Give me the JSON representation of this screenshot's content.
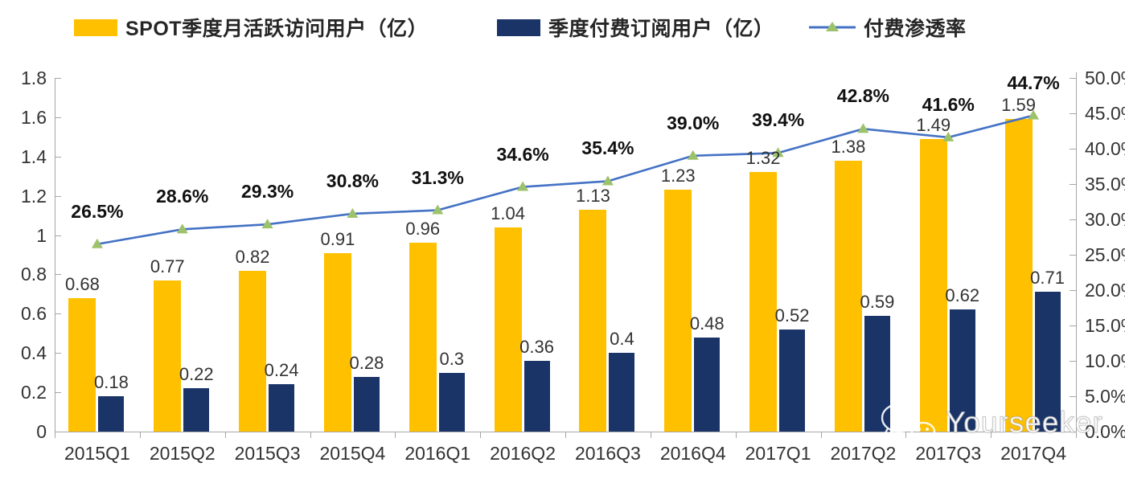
{
  "legend": [
    {
      "label": "SPOT季度月活跃访问用户（亿）",
      "type": "bar",
      "color": "#FFC000"
    },
    {
      "label": "季度付费订阅用户（亿）",
      "type": "bar",
      "color": "#1A3468"
    },
    {
      "label": "付费渗透率",
      "type": "line",
      "color": "#4472C4",
      "marker_color": "#9DC26B"
    }
  ],
  "chart_data": {
    "type": "bar+line combo",
    "categories": [
      "2015Q1",
      "2015Q2",
      "2015Q3",
      "2015Q4",
      "2016Q1",
      "2016Q2",
      "2016Q3",
      "2016Q4",
      "2017Q1",
      "2017Q2",
      "2017Q3",
      "2017Q4"
    ],
    "series": [
      {
        "name": "SPOT季度月活跃访问用户（亿）",
        "type": "bar",
        "axis": "left",
        "color": "#FFC000",
        "values": [
          0.68,
          0.77,
          0.82,
          0.91,
          0.96,
          1.04,
          1.13,
          1.23,
          1.32,
          1.38,
          1.49,
          1.59
        ],
        "labels": [
          "0.68",
          "0.77",
          "0.82",
          "0.91",
          "0.96",
          "1.04",
          "1.13",
          "1.23",
          "1.32",
          "1.38",
          "1.49",
          "1.59"
        ]
      },
      {
        "name": "季度付费订阅用户（亿）",
        "type": "bar",
        "axis": "left",
        "color": "#1A3468",
        "values": [
          0.18,
          0.22,
          0.24,
          0.28,
          0.3,
          0.36,
          0.4,
          0.48,
          0.52,
          0.59,
          0.62,
          0.71
        ],
        "labels": [
          "0.18",
          "0.22",
          "0.24",
          "0.28",
          "0.3",
          "0.36",
          "0.4",
          "0.48",
          "0.52",
          "0.59",
          "0.62",
          "0.71"
        ]
      },
      {
        "name": "付费渗透率",
        "type": "line",
        "axis": "right",
        "color": "#4472C4",
        "marker_color": "#9DC26B",
        "values": [
          26.5,
          28.6,
          29.3,
          30.8,
          31.3,
          34.6,
          35.4,
          39.0,
          39.4,
          42.8,
          41.6,
          44.7
        ],
        "labels": [
          "26.5%",
          "28.6%",
          "29.3%",
          "30.8%",
          "31.3%",
          "34.6%",
          "35.4%",
          "39.0%",
          "39.4%",
          "42.8%",
          "41.6%",
          "44.7%"
        ]
      }
    ],
    "left_axis": {
      "min": 0,
      "max": 1.8,
      "step": 0.2,
      "ticks": [
        "0",
        "0.2",
        "0.4",
        "0.6",
        "0.8",
        "1",
        "1.2",
        "1.4",
        "1.6",
        "1.8"
      ]
    },
    "right_axis": {
      "min": 0,
      "max": 50,
      "step": 5,
      "ticks": [
        "0.0%",
        "5.0%",
        "10.0%",
        "15.0%",
        "20.0%",
        "25.0%",
        "30.0%",
        "35.0%",
        "40.0%",
        "45.0%",
        "50.0%"
      ]
    },
    "grid": "off",
    "legend_position": "top"
  },
  "watermark": {
    "text": "Yourseeker",
    "icon": "wechat-icon"
  }
}
